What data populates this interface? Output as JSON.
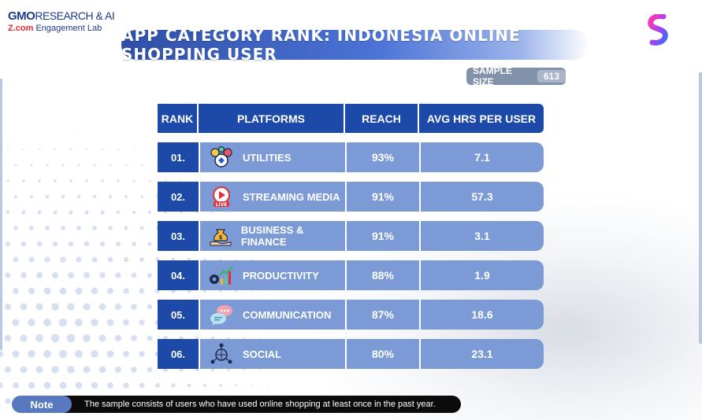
{
  "brand": {
    "line1_bold": "GMO",
    "line1_rest": "RESEARCH & AI",
    "line2_bold": "Z.com",
    "line2_rest": "Engagement Lab"
  },
  "title": "APP CATEGORY RANK: INDONESIA ONLINE SHOPPING USER",
  "sample": {
    "label": "SAMPLE SIZE",
    "value": "613"
  },
  "table": {
    "headers": {
      "rank": "RANK",
      "platforms": "PLATFORMS",
      "reach": "REACH",
      "avg": "AVG HRS PER USER"
    },
    "rows": [
      {
        "rank": "01.",
        "platform": "UTILITIES",
        "reach": "93%",
        "avg": "7.1",
        "icon": "utilities-icon"
      },
      {
        "rank": "02.",
        "platform": "STREAMING MEDIA",
        "reach": "91%",
        "avg": "57.3",
        "icon": "live-stream-icon"
      },
      {
        "rank": "03.",
        "platform": "BUSINESS & FINANCE",
        "reach": "91%",
        "avg": "3.1",
        "icon": "money-bag-hand-icon"
      },
      {
        "rank": "04.",
        "platform": "PRODUCTIVITY",
        "reach": "88%",
        "avg": "1.9",
        "icon": "gear-growth-chart-icon"
      },
      {
        "rank": "05.",
        "platform": "COMMUNICATION",
        "reach": "87%",
        "avg": "18.6",
        "icon": "chat-bubbles-icon"
      },
      {
        "rank": "06.",
        "platform": "SOCIAL",
        "reach": "80%",
        "avg": "23.1",
        "icon": "social-network-icon"
      }
    ]
  },
  "note": {
    "label": "Note",
    "text": "The sample consists of users who have used online shopping at least once in the past year."
  },
  "colors": {
    "header_blue": "#1d49a8",
    "row_blue": "#7c9bd6",
    "sample_gray": "#8392ab"
  }
}
